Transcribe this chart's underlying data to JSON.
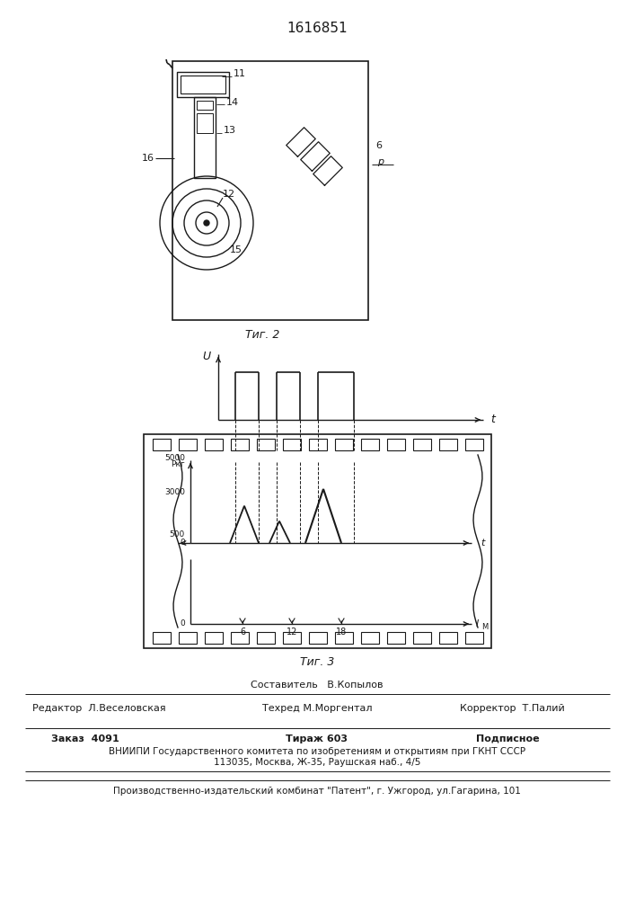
{
  "patent_number": "1616851",
  "fig2_caption": "Τиг. 2",
  "fig3_caption": "Τиг. 3",
  "footer_texts": {
    "sostavitel": "Составитель   В.Копылов",
    "redaktor": "Редактор  Л.Веселовская",
    "tekhred": "Техред М.Моргентал",
    "korrektor": "Корректор  Т.Палий",
    "zakaz": "Заказ  4091",
    "tirazh": "Тираж 603",
    "podpisnoe": "Подписное",
    "vniip": "ВНИИПИ Государственного комитета по изобретениям и открытиям при ГКНТ СССР",
    "address": "113035, Москва, Ж-35, Раушская наб., 4/5",
    "proizv": "Производственно-издательский комбинат \"Патент\", г. Ужгород, ул.Гагарина, 101"
  },
  "line_color": "#1a1a1a"
}
